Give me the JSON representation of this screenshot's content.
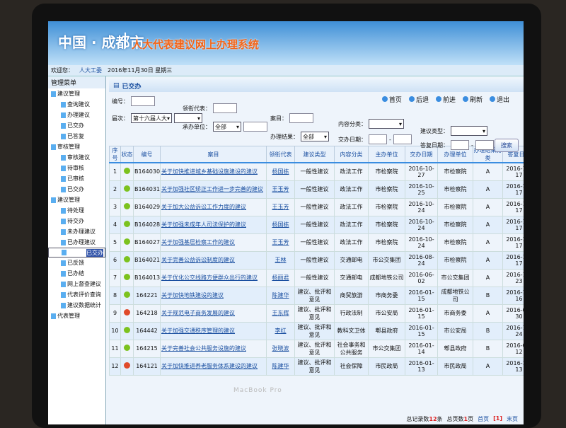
{
  "header": {
    "city": "中国 · 成都市",
    "system": "人大代表建议网上办理系统"
  },
  "info": {
    "welcome": "欢迎您：",
    "user": "人大工委",
    "date": "2016年11月30日 星期三"
  },
  "sidebar": {
    "title": "管理菜单",
    "groups": [
      {
        "label": "建议管理",
        "items": [
          "查询建议",
          "办理建议",
          "已交办",
          "已答复"
        ]
      },
      {
        "label": "审核管理",
        "items": [
          "审核建议",
          "待审核",
          "已审核",
          "已交办"
        ]
      },
      {
        "label": "建议管理",
        "items": [
          "待处理",
          "待交办",
          "未办理建议",
          "已办理建议",
          "已交办",
          "已反馈",
          "已办结",
          "网上督查建议",
          "代表评价查询",
          "建议数据统计"
        ]
      },
      {
        "label": "代表管理",
        "items": []
      }
    ],
    "selected": "已交办"
  },
  "main": {
    "title": "已交办",
    "nav": [
      "首页",
      "后退",
      "前进",
      "刷新",
      "退出"
    ],
    "form": {
      "number": "编号：",
      "session": "届次：",
      "session_value": "第十六届人大",
      "rep": "领衔代表：",
      "dept": "承办单位：",
      "dept_value": "全部",
      "subject": "案目：",
      "result": "办理结果：",
      "result_value": "全部",
      "content": "内容分类：",
      "assign_date": "交办日期：",
      "type": "建议类型：",
      "reply_date": "答复日期：",
      "search": "搜索"
    },
    "columns": [
      "序号",
      "状态",
      "编号",
      "案目",
      "领衔代表",
      "建议类型",
      "内容分类",
      "主办单位",
      "交办日期",
      "办理单位",
      "办理结果分类",
      "答复日期"
    ],
    "rows": [
      [
        "1",
        "green",
        "B164030",
        "关于加快推进城乡基础设施建设的建议",
        "杨国栋",
        "一般性建议",
        "政法工作",
        "市检察院",
        "2016-10-27",
        "市检察院",
        "A",
        "2016-11-17"
      ],
      [
        "2",
        "green",
        "B164031",
        "关于加强社区矫正工作进一步完善的建议",
        "王玉芳",
        "一般性建议",
        "政法工作",
        "市检察院",
        "2016-10-25",
        "市检察院",
        "A",
        "2016-11-17"
      ],
      [
        "3",
        "green",
        "B164029",
        "关于加大公益诉讼工作力度的建议",
        "王玉芳",
        "一般性建议",
        "政法工作",
        "市检察院",
        "2016-10-24",
        "市检察院",
        "A",
        "2016-11-17"
      ],
      [
        "4",
        "green",
        "B164028",
        "关于加强未成年人司法保护的建议",
        "杨国栋",
        "一般性建议",
        "政法工作",
        "市检察院",
        "2016-10-24",
        "市检察院",
        "A",
        "2016-11-17"
      ],
      [
        "5",
        "green",
        "B164027",
        "关于加强基层检察工作的建议",
        "王玉芳",
        "一般性建议",
        "政法工作",
        "市检察院",
        "2016-10-24",
        "市检察院",
        "A",
        "2016-11-17"
      ],
      [
        "6",
        "green",
        "B164021",
        "关于完善公益诉讼制度的建议",
        "王林",
        "一般性建议",
        "交通邮电",
        "市公交集团",
        "2016-08-24",
        "市检察院",
        "A",
        "2016-11-17"
      ],
      [
        "7",
        "green",
        "B164013",
        "关于优化公交线路方便群众出行的建议",
        "杨丽君",
        "一般性建议",
        "交通邮电",
        "成都地铁公司",
        "2016-06-02",
        "市公交集团",
        "A",
        "2016-11-23"
      ],
      [
        "8",
        "green",
        "164221",
        "关于加快地铁建设的建议",
        "陈建华",
        "建议、批评和意见",
        "商贸旅游",
        "市商务委",
        "2016-01-15",
        "成都地铁公司",
        "B",
        "2016-11-16"
      ],
      [
        "9",
        "red",
        "164218",
        "关于规范电子商务发展的建议",
        "王东辉",
        "建议、批评和意见",
        "行政法制",
        "市公安局",
        "2016-01-15",
        "市商务委",
        "A",
        "2016-05-30"
      ],
      [
        "10",
        "green",
        "164442",
        "关于加强交通秩序管理的建议",
        "李红",
        "建议、批评和意见",
        "教科文卫体",
        "郫县政府",
        "2016-01-15",
        "市公安局",
        "B",
        "2016-10-24"
      ],
      [
        "11",
        "green",
        "164215",
        "关于完善社会公共服务设施的建议",
        "张晓波",
        "建议、批评和意见",
        "社会事务和公共服务",
        "市公交集团",
        "2016-01-14",
        "郫县政府",
        "B",
        "2016-05-12"
      ],
      [
        "12",
        "red",
        "164121",
        "关于加快推进养老服务体系建设的建议",
        "陈建华",
        "建议、批评和意见",
        "社会保障",
        "市民政局",
        "2016-01-13",
        "市民政局",
        "A",
        "2016-10-13"
      ]
    ],
    "footer": {
      "total_label": "总记录数",
      "total": "12",
      "total_unit": "条",
      "pages_label": "总页数",
      "pages": "1",
      "pages_unit": "页",
      "first": "首页",
      "current": "[1]",
      "last": "末页"
    }
  },
  "device": {
    "brand": "MacBook Pro"
  },
  "colors": {
    "green": "#7cc21e",
    "red": "#e04a2a",
    "accent": "#1a4fa0"
  }
}
